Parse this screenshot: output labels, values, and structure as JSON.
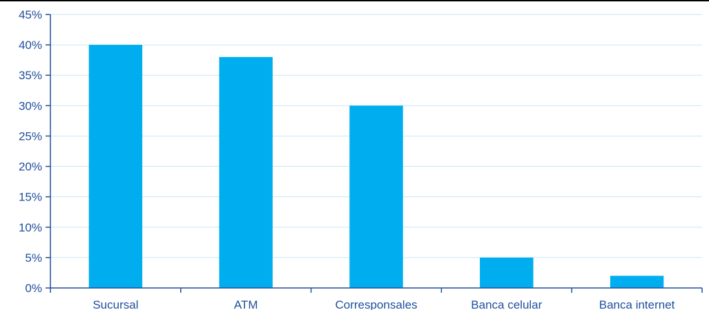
{
  "chart_data": {
    "type": "bar",
    "categories": [
      "Sucursal",
      "ATM",
      "Corresponsales",
      "Banca celular",
      "Banca internet"
    ],
    "values": [
      40,
      38,
      30,
      5,
      2
    ],
    "y_unit": "%",
    "ylim": [
      0,
      45
    ],
    "y_ticks": [
      0,
      5,
      10,
      15,
      20,
      25,
      30,
      35,
      40,
      45
    ],
    "y_tick_labels": [
      "0%",
      "5%",
      "10%",
      "15%",
      "20%",
      "25%",
      "30%",
      "35%",
      "40%",
      "45%"
    ],
    "grid": true,
    "title": "",
    "xlabel": "",
    "ylabel": "",
    "colors": {
      "bar": "#00adef",
      "grid": "#c8e6f2",
      "axis": "#1f4e9c",
      "text": "#1f4e9c",
      "top_rule": "#000000"
    }
  }
}
